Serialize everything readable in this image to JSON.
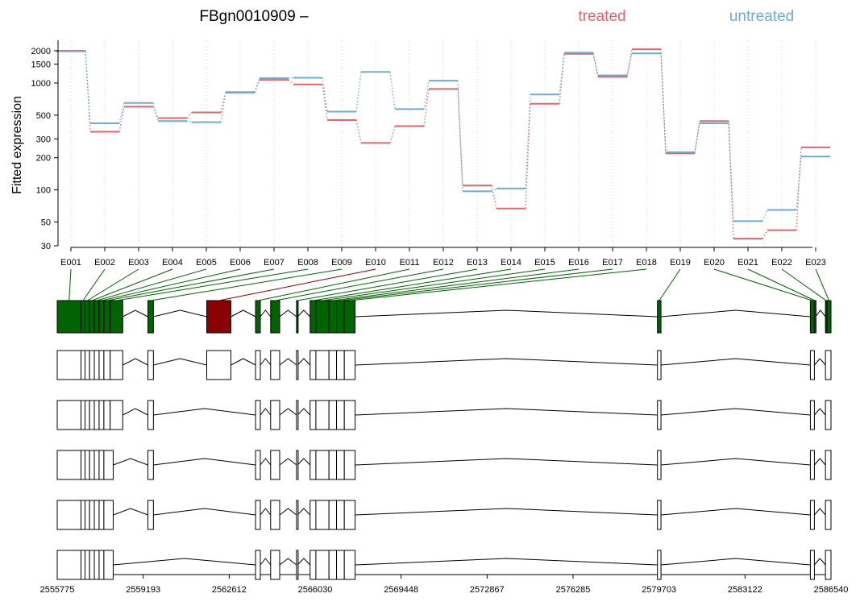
{
  "chart_data": {
    "type": "line",
    "title": "FBgn0010909 –",
    "ylabel": "Fitted expression",
    "xlabel": "",
    "y_scale": "log",
    "ylim": [
      30,
      2300
    ],
    "y_ticks": [
      {
        "value": 30,
        "label": "30"
      },
      {
        "value": 50,
        "label": "50"
      },
      {
        "value": 100,
        "label": "100"
      },
      {
        "value": 200,
        "label": "200"
      },
      {
        "value": 300,
        "label": "300"
      },
      {
        "value": 500,
        "label": "500"
      },
      {
        "value": 1000,
        "label": "1000"
      },
      {
        "value": 1500,
        "label": "1500"
      },
      {
        "value": 2000,
        "label": "2000"
      }
    ],
    "grid": "vertical dotted",
    "legend_placement": "top-right",
    "categories": [
      "E001",
      "E002",
      "E003",
      "E004",
      "E005",
      "E006",
      "E007",
      "E008",
      "E009",
      "E010",
      "E011",
      "E012",
      "E013",
      "E014",
      "E015",
      "E016",
      "E017",
      "E018",
      "E019",
      "E020",
      "E021",
      "E022",
      "E023"
    ],
    "series": [
      {
        "name": "treated",
        "color": "#E8626B",
        "values": [
          2000,
          350,
          600,
          470,
          530,
          820,
          1070,
          970,
          450,
          275,
          395,
          880,
          110,
          67,
          640,
          1870,
          1140,
          2070,
          220,
          440,
          35,
          42,
          250
        ]
      },
      {
        "name": "untreated",
        "color": "#6AAED6",
        "values": [
          1980,
          420,
          650,
          440,
          430,
          810,
          1110,
          1120,
          540,
          1270,
          570,
          1050,
          97,
          103,
          780,
          1920,
          1180,
          1890,
          225,
          420,
          51,
          65,
          205
        ]
      }
    ],
    "highlight_color": "#006400",
    "significant_color": "#8B0000",
    "significant_exon": "E010",
    "genomic_axis": {
      "range": [
        2555775,
        2586540
      ],
      "ticks": [
        {
          "value": 2555775,
          "label": "2555775"
        },
        {
          "value": 2559193,
          "label": "2559193"
        },
        {
          "value": 2562612,
          "label": "2562612"
        },
        {
          "value": 2566030,
          "label": "2566030"
        },
        {
          "value": 2569448,
          "label": "2569448"
        },
        {
          "value": 2572867,
          "label": "2572867"
        },
        {
          "value": 2576285,
          "label": "2576285"
        },
        {
          "value": 2579703,
          "label": "2579703"
        },
        {
          "value": 2583122,
          "label": "2583122"
        },
        {
          "value": 2586540,
          "label": "2586540"
        }
      ]
    },
    "exon_bins": [
      {
        "id": "E001",
        "start": 2555775,
        "end": 2556720
      },
      {
        "id": "E002",
        "start": 2556720,
        "end": 2556880
      },
      {
        "id": "E003",
        "start": 2556880,
        "end": 2557060
      },
      {
        "id": "E004",
        "start": 2557060,
        "end": 2557250
      },
      {
        "id": "E005",
        "start": 2557250,
        "end": 2557440
      },
      {
        "id": "E006",
        "start": 2557440,
        "end": 2557630
      },
      {
        "id": "E007",
        "start": 2557630,
        "end": 2557880
      },
      {
        "id": "E008",
        "start": 2557880,
        "end": 2558380
      },
      {
        "id": "E009",
        "start": 2559380,
        "end": 2559600
      },
      {
        "id": "E010",
        "start": 2561720,
        "end": 2562680
      },
      {
        "id": "E011",
        "start": 2563660,
        "end": 2563850
      },
      {
        "id": "E012",
        "start": 2564260,
        "end": 2564620
      },
      {
        "id": "E013",
        "start": 2565290,
        "end": 2565330
      },
      {
        "id": "E014",
        "start": 2565830,
        "end": 2566060
      },
      {
        "id": "E015",
        "start": 2566060,
        "end": 2566580
      },
      {
        "id": "E016",
        "start": 2566580,
        "end": 2566880
      },
      {
        "id": "E017",
        "start": 2566880,
        "end": 2567190
      },
      {
        "id": "E018",
        "start": 2567190,
        "end": 2567620
      },
      {
        "id": "E019",
        "start": 2579640,
        "end": 2579780
      },
      {
        "id": "E020",
        "start": 2585720,
        "end": 2585880
      },
      {
        "id": "E021",
        "start": 2585880,
        "end": 2585920
      },
      {
        "id": "E022",
        "start": 2586320,
        "end": 2586380
      },
      {
        "id": "E023",
        "start": 2586380,
        "end": 2586540
      }
    ],
    "transcripts": [
      [
        [
          2555775,
          2556720
        ],
        [
          2556720,
          2556880
        ],
        [
          2556880,
          2557060
        ],
        [
          2557060,
          2557250
        ],
        [
          2557250,
          2557440
        ],
        [
          2557440,
          2557630
        ],
        [
          2557630,
          2557880
        ],
        [
          2557880,
          2558380
        ],
        [
          2559380,
          2559600
        ],
        [
          2561720,
          2562680
        ],
        [
          2563660,
          2563850
        ],
        [
          2564260,
          2564620
        ],
        [
          2565290,
          2565330
        ],
        [
          2565830,
          2566060
        ],
        [
          2566060,
          2566580
        ],
        [
          2566580,
          2566880
        ],
        [
          2566880,
          2567190
        ],
        [
          2567190,
          2567620
        ],
        [
          2579640,
          2579780
        ],
        [
          2585720,
          2585880
        ],
        [
          2586320,
          2586540
        ]
      ],
      [
        [
          2555775,
          2556720
        ],
        [
          2556720,
          2556880
        ],
        [
          2556880,
          2557060
        ],
        [
          2557060,
          2557250
        ],
        [
          2557250,
          2557440
        ],
        [
          2557440,
          2557630
        ],
        [
          2557630,
          2557880
        ],
        [
          2557880,
          2558380
        ],
        [
          2559380,
          2559600
        ],
        [
          2563660,
          2563850
        ],
        [
          2564260,
          2564620
        ],
        [
          2565290,
          2565330
        ],
        [
          2565830,
          2566060
        ],
        [
          2566060,
          2566580
        ],
        [
          2566580,
          2566880
        ],
        [
          2566880,
          2567190
        ],
        [
          2567190,
          2567620
        ],
        [
          2579640,
          2579780
        ],
        [
          2585720,
          2585880
        ],
        [
          2586320,
          2586540
        ]
      ],
      [
        [
          2555775,
          2556720
        ],
        [
          2556720,
          2556880
        ],
        [
          2556880,
          2557060
        ],
        [
          2557060,
          2557250
        ],
        [
          2557250,
          2557440
        ],
        [
          2557440,
          2557630
        ],
        [
          2557630,
          2558000
        ],
        [
          2559380,
          2559600
        ],
        [
          2563660,
          2563850
        ],
        [
          2564260,
          2564620
        ],
        [
          2565290,
          2565330
        ],
        [
          2565830,
          2566060
        ],
        [
          2566060,
          2566580
        ],
        [
          2566580,
          2566880
        ],
        [
          2566880,
          2567190
        ],
        [
          2567190,
          2567620
        ],
        [
          2579640,
          2579780
        ],
        [
          2585720,
          2585880
        ],
        [
          2586320,
          2586540
        ]
      ],
      [
        [
          2555775,
          2556720
        ],
        [
          2556720,
          2556880
        ],
        [
          2556880,
          2557060
        ],
        [
          2557060,
          2557250
        ],
        [
          2557250,
          2557440
        ],
        [
          2557440,
          2557630
        ],
        [
          2557630,
          2558000
        ],
        [
          2559380,
          2559600
        ],
        [
          2563660,
          2563850
        ],
        [
          2564260,
          2564620
        ],
        [
          2565290,
          2565330
        ],
        [
          2565830,
          2566060
        ],
        [
          2566060,
          2566580
        ],
        [
          2566580,
          2566880
        ],
        [
          2566880,
          2567190
        ],
        [
          2567190,
          2567620
        ],
        [
          2579640,
          2579780
        ],
        [
          2585720,
          2585880
        ],
        [
          2586320,
          2586540
        ]
      ],
      [
        [
          2555775,
          2556720
        ],
        [
          2556720,
          2556880
        ],
        [
          2556880,
          2557060
        ],
        [
          2557060,
          2557250
        ],
        [
          2557250,
          2557440
        ],
        [
          2557440,
          2557630
        ],
        [
          2557630,
          2558000
        ],
        [
          2563660,
          2563850
        ],
        [
          2564260,
          2564620
        ],
        [
          2565290,
          2565330
        ],
        [
          2565830,
          2566060
        ],
        [
          2566060,
          2566580
        ],
        [
          2566580,
          2566880
        ],
        [
          2566880,
          2567190
        ],
        [
          2567190,
          2567620
        ],
        [
          2579640,
          2579780
        ],
        [
          2585720,
          2585880
        ],
        [
          2586320,
          2586540
        ]
      ]
    ]
  }
}
